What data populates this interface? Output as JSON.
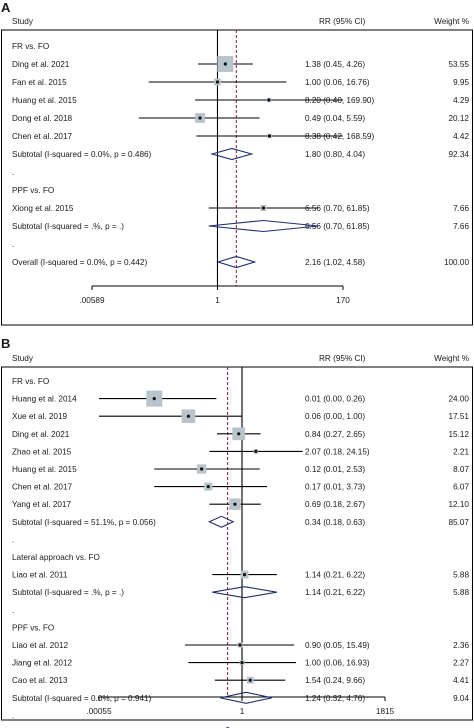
{
  "chart_data": [
    {
      "type": "forest",
      "panel": "A",
      "columns": {
        "study": "Study",
        "rr": "RR (95% CI)",
        "weight": "Weight %"
      },
      "x_scale": "log",
      "ticks": [
        ".00589",
        "1",
        "170"
      ],
      "xlim": [
        0.00589,
        170
      ],
      "pooled_line": 2.16,
      "rows": [
        {
          "kind": "group",
          "label": "FR vs. FO"
        },
        {
          "kind": "study",
          "label": "Ding et al. 2021",
          "rr": 1.38,
          "lo": 0.45,
          "hi": 4.26,
          "rr_text": "1.38 (0.45, 4.26)",
          "weight": 53.55,
          "weight_text": "53.55"
        },
        {
          "kind": "study",
          "label": "Fan et al. 2015",
          "rr": 1.0,
          "lo": 0.06,
          "hi": 16.76,
          "rr_text": "1.00 (0.06, 16.76)",
          "weight": 9.95,
          "weight_text": "9.95"
        },
        {
          "kind": "study",
          "label": "Huang et al. 2015",
          "rr": 8.2,
          "lo": 0.4,
          "hi": 169.9,
          "rr_text": "8.20 (0.40, 169.90)",
          "weight": 4.29,
          "weight_text": "4.29"
        },
        {
          "kind": "study",
          "label": "Dong et al. 2018",
          "rr": 0.49,
          "lo": 0.04,
          "hi": 5.59,
          "rr_text": "0.49 (0.04, 5.59)",
          "weight": 20.12,
          "weight_text": "20.12"
        },
        {
          "kind": "study",
          "label": "Chen et al. 2017",
          "rr": 8.38,
          "lo": 0.42,
          "hi": 168.59,
          "rr_text": "8.38 (0.42, 168.59)",
          "weight": 4.42,
          "weight_text": "4.42"
        },
        {
          "kind": "subtotal",
          "label": "Subtotal  (I-squared = 0.0%, p = 0.486)",
          "rr": 1.8,
          "lo": 0.8,
          "hi": 4.04,
          "rr_text": "1.80 (0.80, 4.04)",
          "weight_text": "92.34"
        },
        {
          "kind": "dot",
          "label": "."
        },
        {
          "kind": "group",
          "label": "PPF vs. FO"
        },
        {
          "kind": "study",
          "label": "Xiong et al. 2015",
          "rr": 6.56,
          "lo": 0.7,
          "hi": 61.85,
          "rr_text": "6.56 (0.70, 61.85)",
          "weight": 7.66,
          "weight_text": "7.66"
        },
        {
          "kind": "subtotal",
          "label": "Subtotal  (I-squared = .%, p = .)",
          "rr": 6.56,
          "lo": 0.7,
          "hi": 61.85,
          "rr_text": "6.56 (0.70, 61.85)",
          "weight_text": "7.66"
        },
        {
          "kind": "dot",
          "label": "."
        },
        {
          "kind": "overall",
          "label": "Overall  (I-squared = 0.0%, p = 0.442)",
          "rr": 2.16,
          "lo": 1.02,
          "hi": 4.58,
          "rr_text": "2.16 (1.02, 4.58)",
          "weight_text": "100.00"
        }
      ]
    },
    {
      "type": "forest",
      "panel": "B",
      "columns": {
        "study": "Study",
        "rr": "RR (95% CI)",
        "weight": "Weight  %"
      },
      "x_scale": "log",
      "ticks": [
        ".00055",
        "1",
        "1815"
      ],
      "xlim": [
        0.00055,
        1815
      ],
      "pooled_line": 0.47,
      "rows": [
        {
          "kind": "group",
          "label": "FR vs. FO"
        },
        {
          "kind": "study",
          "label": "Huang et al. 2014",
          "rr": 0.01,
          "lo": 0.0,
          "hi": 0.26,
          "rr_text": "0.01 (0.00, 0.26)",
          "weight": 24.0,
          "weight_text": "24.00"
        },
        {
          "kind": "study",
          "label": "Xue et al. 2019",
          "rr": 0.06,
          "lo": 0.0,
          "hi": 1.0,
          "rr_text": "0.06 (0.00, 1.00)",
          "weight": 17.51,
          "weight_text": "17.51"
        },
        {
          "kind": "study",
          "label": "Ding et al. 2021",
          "rr": 0.84,
          "lo": 0.27,
          "hi": 2.65,
          "rr_text": "0.84 (0.27, 2.65)",
          "weight": 15.12,
          "weight_text": "15.12"
        },
        {
          "kind": "study",
          "label": "Zhao et al. 2015",
          "rr": 2.07,
          "lo": 0.18,
          "hi": 24.15,
          "rr_text": "2.07 (0.18, 24.15)",
          "weight": 2.21,
          "weight_text": "2.21"
        },
        {
          "kind": "study",
          "label": "Huang et al. 2015",
          "rr": 0.12,
          "lo": 0.01,
          "hi": 2.53,
          "rr_text": "0.12 (0.01, 2.53)",
          "weight": 8.07,
          "weight_text": "8.07"
        },
        {
          "kind": "study",
          "label": "Chen et al. 2017",
          "rr": 0.17,
          "lo": 0.01,
          "hi": 3.73,
          "rr_text": "0.17 (0.01, 3.73)",
          "weight": 6.07,
          "weight_text": "6.07"
        },
        {
          "kind": "study",
          "label": "Yang et al. 2017",
          "rr": 0.69,
          "lo": 0.18,
          "hi": 2.67,
          "rr_text": "0.69 (0.18, 2.67)",
          "weight": 12.1,
          "weight_text": "12.10"
        },
        {
          "kind": "subtotal",
          "label": "Subtotal  (I-squared = 51.1%, p = 0.056)",
          "rr": 0.34,
          "lo": 0.18,
          "hi": 0.63,
          "rr_text": "0.34 (0.18, 0.63)",
          "weight_text": "85.07"
        },
        {
          "kind": "dot",
          "label": "."
        },
        {
          "kind": "group",
          "label": "Lateral approach vs. FO"
        },
        {
          "kind": "study",
          "label": "Liao et al. 2011",
          "rr": 1.14,
          "lo": 0.21,
          "hi": 6.22,
          "rr_text": "1.14 (0.21, 6.22)",
          "weight": 5.88,
          "weight_text": "5.88"
        },
        {
          "kind": "subtotal",
          "label": "Subtotal  (I-squared = .%, p = .)",
          "rr": 1.14,
          "lo": 0.21,
          "hi": 6.22,
          "rr_text": "1.14 (0.21, 6.22)",
          "weight_text": "5.88"
        },
        {
          "kind": "dot",
          "label": "."
        },
        {
          "kind": "group",
          "label": "PPF vs. FO"
        },
        {
          "kind": "study",
          "label": "Liao et al. 2012",
          "rr": 0.9,
          "lo": 0.05,
          "hi": 15.49,
          "rr_text": "0.90 (0.05, 15.49)",
          "weight": 2.36,
          "weight_text": "2.36"
        },
        {
          "kind": "study",
          "label": "Jiang et al. 2012",
          "rr": 1.0,
          "lo": 0.06,
          "hi": 16.93,
          "rr_text": "1.00 (0.06, 16.93)",
          "weight": 2.27,
          "weight_text": "2.27"
        },
        {
          "kind": "study",
          "label": "Cao et al. 2013",
          "rr": 1.54,
          "lo": 0.24,
          "hi": 9.66,
          "rr_text": "1.54 (0.24, 9.66)",
          "weight": 4.41,
          "weight_text": "4.41"
        },
        {
          "kind": "subtotal",
          "label": "Subtotal  (I-squared = 0.0%, p = 0.941)",
          "rr": 1.24,
          "lo": 0.32,
          "hi": 4.76,
          "rr_text": "1.24 (0.32, 4.76)",
          "weight_text": "9.04"
        },
        {
          "kind": "dot",
          "label": "."
        },
        {
          "kind": "overall",
          "label": "Overall  (I-squared = 31.6%, p = 0.147)",
          "rr": 0.47,
          "lo": 0.28,
          "hi": 0.79,
          "rr_text": "0.47 (0.28, 0.79)",
          "weight_text": "100.00"
        }
      ]
    }
  ],
  "colors": {
    "diamond": "#1f2f6e",
    "pooled_line": "#8b1a2b",
    "weight_box": "#b8c4cc",
    "axis": "#000000"
  }
}
